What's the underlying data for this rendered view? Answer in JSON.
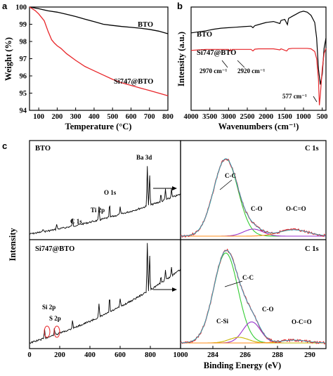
{
  "panels": {
    "a": {
      "letter": "a",
      "chart_data": {
        "type": "line",
        "xlabel": "Temperature (°C)",
        "ylabel": "Weight (%)",
        "xlim": [
          50,
          800
        ],
        "ylim": [
          94,
          100
        ],
        "xticks": [
          "100",
          "200",
          "300",
          "400",
          "500",
          "600",
          "700",
          "800"
        ],
        "yticks": [
          "94",
          "95",
          "96",
          "97",
          "98",
          "99",
          "100"
        ],
        "series": [
          {
            "name": "BTO",
            "color": "#000000",
            "x": [
              50,
              100,
              150,
              200,
              250,
              300,
              350,
              400,
              450,
              500,
              550,
              600,
              650,
              700,
              750,
              800
            ],
            "y": [
              100,
              99.9,
              99.78,
              99.7,
              99.58,
              99.45,
              99.3,
              99.15,
              99.0,
              98.93,
              98.87,
              98.82,
              98.77,
              98.7,
              98.6,
              98.45
            ]
          },
          {
            "name": "Si747@BTO",
            "color": "#e8262a",
            "x": [
              50,
              80,
              100,
              130,
              150,
              170,
              185,
              200,
              220,
              250,
              300,
              350,
              400,
              450,
              500,
              550,
              600,
              650,
              700,
              750,
              800
            ],
            "y": [
              100,
              99.8,
              99.6,
              99.2,
              98.6,
              98.1,
              97.9,
              97.75,
              97.6,
              97.3,
              96.9,
              96.55,
              96.3,
              96.05,
              95.8,
              95.6,
              95.45,
              95.3,
              95.15,
              95.0,
              94.85
            ]
          }
        ]
      }
    },
    "b": {
      "letter": "b",
      "chart_data": {
        "type": "line",
        "xlabel": "Wavenumbers (cm⁻¹)",
        "ylabel": "Intensity (a.u.)",
        "xlim": [
          4000,
          400
        ],
        "xticks": [
          "4000",
          "3500",
          "3000",
          "2500",
          "2000",
          "1500",
          "1000",
          "500"
        ],
        "series": [
          {
            "name": "BTO",
            "color": "#000000",
            "x": [
              4000,
              3800,
              3600,
              3400,
              3200,
              3000,
              2800,
              2600,
              2400,
              2350,
              2300,
              2200,
              2000,
              1800,
              1630,
              1600,
              1500,
              1430,
              1400,
              1300,
              1200,
              1100,
              1000,
              900,
              800,
              700,
              650,
              600,
              550,
              500,
              450,
              400
            ],
            "y": [
              0.75,
              0.76,
              0.77,
              0.785,
              0.795,
              0.8,
              0.805,
              0.81,
              0.815,
              0.8,
              0.82,
              0.83,
              0.85,
              0.86,
              0.84,
              0.87,
              0.88,
              0.83,
              0.89,
              0.91,
              0.93,
              0.95,
              0.96,
              0.95,
              0.92,
              0.85,
              0.7,
              0.4,
              0.25,
              0.35,
              0.6,
              0.7
            ]
          },
          {
            "name": "Si747@BTO",
            "color": "#e8262a",
            "x": [
              4000,
              3800,
              3600,
              3400,
              3200,
              3000,
              2970,
              2940,
              2920,
              2900,
              2800,
              2600,
              2400,
              2350,
              2300,
              2200,
              2000,
              1800,
              1630,
              1600,
              1450,
              1400,
              1300,
              1200,
              1100,
              1000,
              900,
              800,
              700,
              650,
              600,
              577,
              550,
              500,
              450,
              400
            ],
            "y": [
              0.58,
              0.585,
              0.59,
              0.59,
              0.59,
              0.59,
              0.575,
              0.59,
              0.572,
              0.59,
              0.59,
              0.59,
              0.59,
              0.575,
              0.592,
              0.595,
              0.595,
              0.595,
              0.585,
              0.595,
              0.575,
              0.595,
              0.6,
              0.6,
              0.6,
              0.6,
              0.6,
              0.595,
              0.57,
              0.5,
              0.3,
              0.05,
              0.15,
              0.4,
              0.55,
              0.6
            ]
          }
        ],
        "annotations": [
          "2970 cm⁻¹",
          "2920 cm⁻¹",
          "577 cm⁻¹"
        ]
      }
    },
    "c": {
      "letter": "c",
      "ylabel": "Intensity",
      "xlabel": "Binding Energy (eV)",
      "survey": {
        "xlim": [
          0,
          1000
        ],
        "xticks": [
          "0",
          "200",
          "400",
          "600",
          "800",
          "1000"
        ],
        "top_label": "BTO",
        "bottom_label": "Si747@BTO",
        "peaks_top": [
          "C 1s",
          "Ti 2p",
          "O 1s",
          "Ba 3d"
        ],
        "peaks_bottom": [
          "Si 2p",
          "S 2p"
        ]
      },
      "c1s": {
        "xlim": [
          282,
          291
        ],
        "xticks": [
          "284",
          "286",
          "288",
          "290"
        ],
        "title": "C 1s",
        "top_components": [
          "C-C",
          "C-O",
          "O-C=O"
        ],
        "bottom_components": [
          "C-C",
          "C-O",
          "C-Si",
          "O-C=O"
        ]
      }
    }
  }
}
